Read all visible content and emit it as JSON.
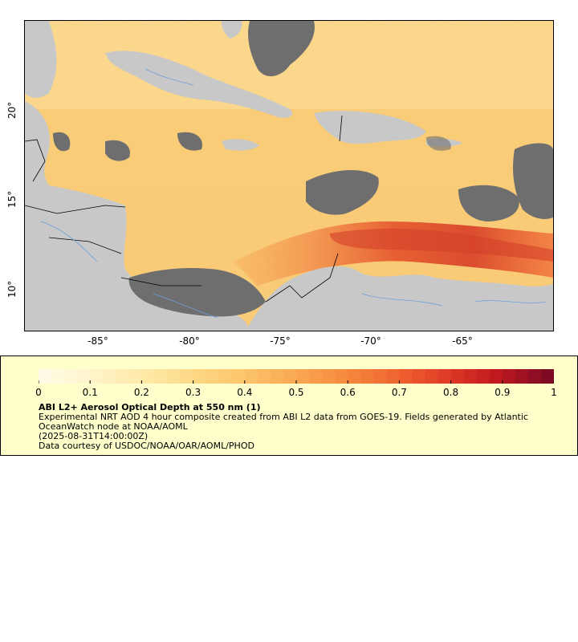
{
  "map": {
    "x_ticks": [
      "-85°",
      "-80°",
      "-75°",
      "-70°",
      "-65°"
    ],
    "y_ticks": [
      "20°",
      "15°",
      "10°"
    ],
    "colors": {
      "land": "#c8c8c8",
      "cloud_mask": "#6e6e6e",
      "ocean_base": "#f9c26a",
      "boundaries": "#000000",
      "rivers": "#6f9fd8"
    }
  },
  "legend": {
    "scale_labels": [
      "0",
      "0.1",
      "0.2",
      "0.3",
      "0.4",
      "0.5",
      "0.6",
      "0.7",
      "0.8",
      "0.9",
      "1"
    ],
    "scale_colors": [
      "#fffbe5",
      "#fff3c8",
      "#fee9a6",
      "#fdd884",
      "#fcc46a",
      "#f9a852",
      "#f6893e",
      "#f06530",
      "#e03a26",
      "#c0181f",
      "#7f0a24"
    ],
    "title": "ABI L2+ Aerosol Optical Depth at 550 nm (1)",
    "description": "Experimental NRT AOD 4 hour composite created from ABI L2 data from GOES-19. Fields generated by Atlantic OceanWatch node at NOAA/AOML",
    "time": "(2025-08-31T14:00:00Z)",
    "credit": "Data courtesy of USDOC/NOAA/OAR/AOML/PHOD"
  }
}
